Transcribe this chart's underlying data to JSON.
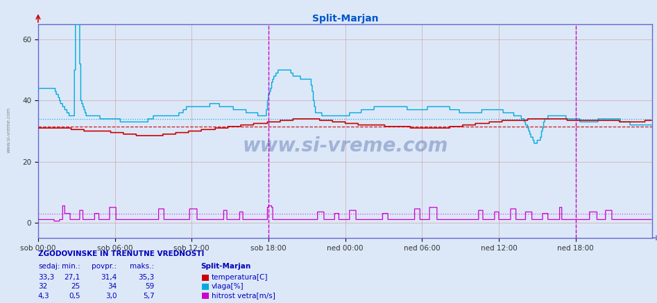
{
  "title": "Split-Marjan",
  "title_color": "#0055cc",
  "bg_color": "#dce8f8",
  "plot_bg_color": "#dce8f8",
  "fig_width": 9.47,
  "fig_height": 4.38,
  "ylim": [
    -5,
    65
  ],
  "yticks": [
    0,
    20,
    40,
    60
  ],
  "x_tick_labels": [
    "sob 00:00",
    "sob 06:00",
    "sob 12:00",
    "sob 18:00",
    "ned 00:00",
    "ned 06:00",
    "ned 12:00",
    "ned 18:00"
  ],
  "x_tick_positions": [
    0,
    72,
    144,
    216,
    288,
    360,
    432,
    504
  ],
  "total_points": 576,
  "temp_color": "#cc0000",
  "vlaga_color": "#00aadd",
  "wind_color": "#cc00cc",
  "temp_avg": 31.4,
  "vlaga_avg": 34.0,
  "wind_avg": 3.0,
  "watermark": "www.si-vreme.com",
  "watermark_color": "#1a3a8a",
  "left_label": "www.si-vreme.com",
  "current_line_x": 216,
  "end_line_x": 504,
  "legend_title": "Split-Marjan",
  "legend_temp_label": "temperatura[C]",
  "legend_vlaga_label": "vlaga[%]",
  "legend_wind_label": "hitrost vetra[m/s]",
  "table_title": "ZGODOVINSKE IN TRENUTNE VREDNOSTI",
  "table_headers": [
    "sedaj:",
    "min.:",
    "povpr.:",
    "maks.:"
  ],
  "table_temp": [
    "33,3",
    "27,1",
    "31,4",
    "35,3"
  ],
  "table_vlaga": [
    "32",
    "25",
    "34",
    "59"
  ],
  "table_wind": [
    "4,3",
    "0,5",
    "3,0",
    "5,7"
  ],
  "grid_color": "#cc9999",
  "spine_color": "#6666cc"
}
